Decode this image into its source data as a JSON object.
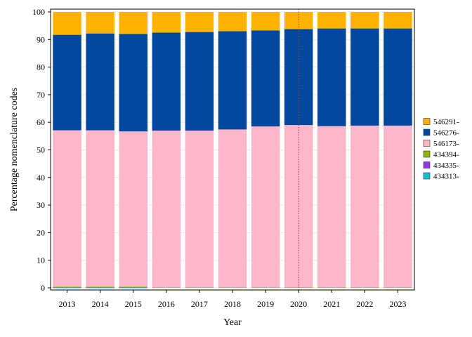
{
  "chart_data": {
    "type": "bar",
    "stacked": true,
    "title": "",
    "xlabel": "Year",
    "ylabel": "Percentage nomenclature codes",
    "ylim": [
      0,
      100
    ],
    "yticks": [
      0,
      10,
      20,
      30,
      40,
      50,
      60,
      70,
      80,
      90,
      100
    ],
    "grid": true,
    "legend_position": "right",
    "reference_line": {
      "x": "2020",
      "style": "dotted",
      "color": "#c0392b"
    },
    "categories": [
      "2013",
      "2014",
      "2015",
      "2016",
      "2017",
      "2018",
      "2019",
      "2020",
      "2021",
      "2022",
      "2023"
    ],
    "series": [
      {
        "name": "434313-",
        "color": "#17becf",
        "values": [
          0.1,
          0.1,
          0.1,
          0,
          0,
          0,
          0,
          0,
          0,
          0,
          0
        ]
      },
      {
        "name": "434335-",
        "color": "#9b30ff",
        "values": [
          0.1,
          0.1,
          0.1,
          0,
          0,
          0,
          0,
          0,
          0,
          0,
          0
        ]
      },
      {
        "name": "434394-",
        "color": "#8db600",
        "values": [
          0.2,
          0.2,
          0.2,
          0.2,
          0.2,
          0.2,
          0.2,
          0.2,
          0.2,
          0.2,
          0.2
        ]
      },
      {
        "name": "546173-",
        "color": "#ffb6c8",
        "values": [
          56.7,
          56.7,
          56.3,
          56.8,
          56.8,
          57.2,
          58.3,
          58.8,
          58.4,
          58.6,
          58.6
        ]
      },
      {
        "name": "546276-",
        "color": "#0047a0",
        "values": [
          34.6,
          35.1,
          35.3,
          35.5,
          35.7,
          35.6,
          34.8,
          34.8,
          35.4,
          35.2,
          35.2
        ]
      },
      {
        "name": "546291-",
        "color": "#ffb300",
        "values": [
          8.3,
          7.8,
          8.0,
          7.5,
          7.3,
          7.0,
          6.7,
          6.2,
          6.0,
          6.0,
          6.0
        ]
      }
    ],
    "legend_order": [
      "546291-",
      "546276-",
      "546173-",
      "434394-",
      "434335-",
      "434313-"
    ]
  }
}
